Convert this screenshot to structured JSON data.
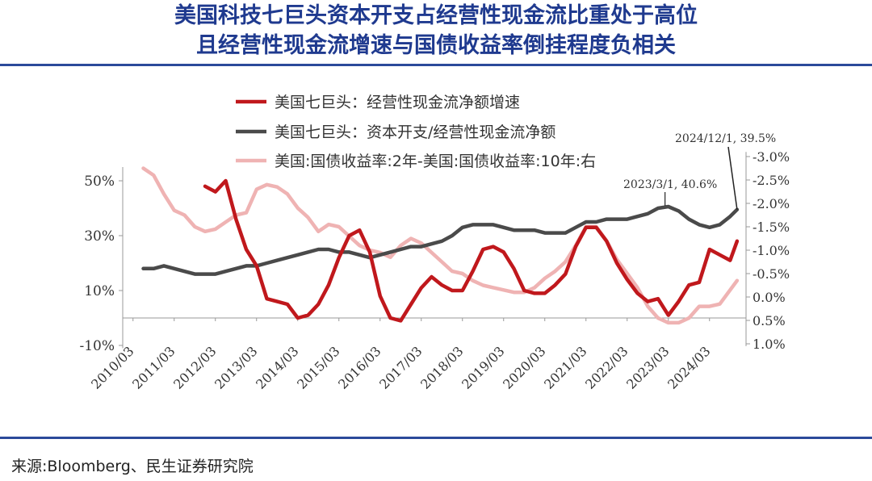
{
  "header": {
    "title_line1": "美国科技七巨头资本开支占经营性现金流比重处于高位",
    "title_line2": "且经营性现金流增速与国债收益率倒挂程度负相关"
  },
  "footer": {
    "source": "来源:Bloomberg、民生证券研究院"
  },
  "colors": {
    "title": "#1f3a8f",
    "rule": "#2b4a9a",
    "growth": "#c0181c",
    "capex": "#4a4a4a",
    "spread": "#efb3b3"
  },
  "chart_data": {
    "type": "line",
    "grid": false,
    "legend_position": "top",
    "x_ticks": [
      "2010/03",
      "2011/03",
      "2012/03",
      "2013/03",
      "2014/03",
      "2015/03",
      "2016/03",
      "2017/03",
      "2018/03",
      "2019/03",
      "2020/03",
      "2021/03",
      "2022/03",
      "2023/03",
      "2024/03"
    ],
    "y_left": {
      "ticks": [
        "50%",
        "30%",
        "10%",
        "-10%"
      ],
      "ylim": [
        -10,
        50
      ]
    },
    "y_right": {
      "ticks": [
        "-3.0%",
        "-2.5%",
        "-2.0%",
        "-1.5%",
        "-1.0%",
        "-0.5%",
        "0.0%",
        "0.5%",
        "1.0%"
      ],
      "ylim": [
        1.0,
        -3.0
      ],
      "inverted": true
    },
    "annotations": [
      {
        "text": "2024/12/1, 39.5%",
        "x": 2024.92,
        "y": 39.5
      },
      {
        "text": "2023/3/1, 40.6%",
        "x": 2023.17,
        "y": 40.6
      }
    ],
    "series": [
      {
        "name": "美国七巨头：经营性现金流净额增速",
        "axis": "left",
        "color": "#c0181c",
        "x": [
          2012.0,
          2012.25,
          2012.5,
          2012.75,
          2013.0,
          2013.25,
          2013.5,
          2013.75,
          2014.0,
          2014.25,
          2014.5,
          2014.75,
          2015.0,
          2015.25,
          2015.5,
          2015.75,
          2016.0,
          2016.25,
          2016.5,
          2016.75,
          2017.0,
          2017.25,
          2017.5,
          2017.75,
          2018.0,
          2018.25,
          2018.5,
          2018.75,
          2019.0,
          2019.25,
          2019.5,
          2019.75,
          2020.0,
          2020.25,
          2020.5,
          2020.75,
          2021.0,
          2021.25,
          2021.5,
          2021.75,
          2022.0,
          2022.25,
          2022.5,
          2022.75,
          2023.0,
          2023.25,
          2023.5,
          2023.75,
          2024.0,
          2024.25,
          2024.5,
          2024.75,
          2024.92
        ],
        "y": [
          48,
          46,
          50,
          36,
          25,
          19,
          7,
          6,
          5,
          0,
          1,
          5,
          12,
          22,
          30,
          32,
          24,
          8,
          0,
          -1,
          5,
          11,
          15,
          12,
          10,
          10,
          17,
          25,
          26,
          24,
          18,
          10,
          9,
          9,
          12,
          16,
          26,
          33,
          33,
          28,
          20,
          14,
          9,
          6,
          7,
          1,
          6,
          12,
          13,
          25,
          23,
          21,
          28
        ]
      },
      {
        "name": "美国七巨头：资本开支/经营性现金流净额",
        "axis": "left",
        "color": "#4a4a4a",
        "x": [
          2010.5,
          2010.75,
          2011.0,
          2011.25,
          2011.5,
          2011.75,
          2012.0,
          2012.25,
          2012.5,
          2012.75,
          2013.0,
          2013.25,
          2013.5,
          2013.75,
          2014.0,
          2014.25,
          2014.5,
          2014.75,
          2015.0,
          2015.25,
          2015.5,
          2015.75,
          2016.0,
          2016.25,
          2016.5,
          2016.75,
          2017.0,
          2017.25,
          2017.5,
          2017.75,
          2018.0,
          2018.25,
          2018.5,
          2018.75,
          2019.0,
          2019.25,
          2019.5,
          2019.75,
          2020.0,
          2020.25,
          2020.5,
          2020.75,
          2021.0,
          2021.25,
          2021.5,
          2021.75,
          2022.0,
          2022.25,
          2022.5,
          2022.75,
          2023.0,
          2023.25,
          2023.5,
          2023.75,
          2024.0,
          2024.25,
          2024.5,
          2024.75,
          2024.92
        ],
        "y": [
          18,
          18,
          19,
          18,
          17,
          16,
          16,
          16,
          17,
          18,
          19,
          19,
          20,
          21,
          22,
          23,
          24,
          25,
          25,
          24,
          24,
          23,
          22,
          23,
          24,
          25,
          26,
          26,
          27,
          28,
          30,
          33,
          34,
          34,
          34,
          33,
          32,
          32,
          32,
          31,
          31,
          31,
          33,
          35,
          35,
          36,
          36,
          36,
          37,
          38,
          40,
          40.6,
          39,
          36,
          34,
          33,
          34,
          37,
          39.5
        ]
      },
      {
        "name": "美国:国债收益率:2年-美国:国债收益率:10年:右",
        "axis": "right",
        "color": "#efb3b3",
        "x": [
          2010.5,
          2010.75,
          2011.0,
          2011.25,
          2011.5,
          2011.75,
          2012.0,
          2012.25,
          2012.5,
          2012.75,
          2013.0,
          2013.25,
          2013.5,
          2013.75,
          2014.0,
          2014.25,
          2014.5,
          2014.75,
          2015.0,
          2015.25,
          2015.5,
          2015.75,
          2016.0,
          2016.25,
          2016.5,
          2016.75,
          2017.0,
          2017.25,
          2017.5,
          2017.75,
          2018.0,
          2018.25,
          2018.5,
          2018.75,
          2019.0,
          2019.25,
          2019.5,
          2019.75,
          2020.0,
          2020.25,
          2020.5,
          2020.75,
          2021.0,
          2021.25,
          2021.5,
          2021.75,
          2022.0,
          2022.25,
          2022.5,
          2022.75,
          2023.0,
          2023.25,
          2023.5,
          2023.75,
          2024.0,
          2024.25,
          2024.5,
          2024.75,
          2024.92
        ],
        "y": [
          -2.75,
          -2.6,
          -2.2,
          -1.85,
          -1.75,
          -1.5,
          -1.4,
          -1.45,
          -1.6,
          -1.75,
          -1.8,
          -2.3,
          -2.4,
          -2.35,
          -2.2,
          -1.9,
          -1.7,
          -1.4,
          -1.55,
          -1.5,
          -1.3,
          -1.1,
          -1.0,
          -0.95,
          -0.85,
          -1.1,
          -1.25,
          -1.15,
          -0.95,
          -0.75,
          -0.55,
          -0.5,
          -0.35,
          -0.25,
          -0.2,
          -0.15,
          -0.1,
          -0.1,
          -0.2,
          -0.4,
          -0.55,
          -0.75,
          -1.1,
          -1.5,
          -1.5,
          -1.2,
          -0.8,
          -0.5,
          -0.2,
          0.2,
          0.45,
          0.55,
          0.55,
          0.45,
          0.2,
          0.2,
          0.15,
          -0.15,
          -0.35
        ]
      }
    ]
  }
}
